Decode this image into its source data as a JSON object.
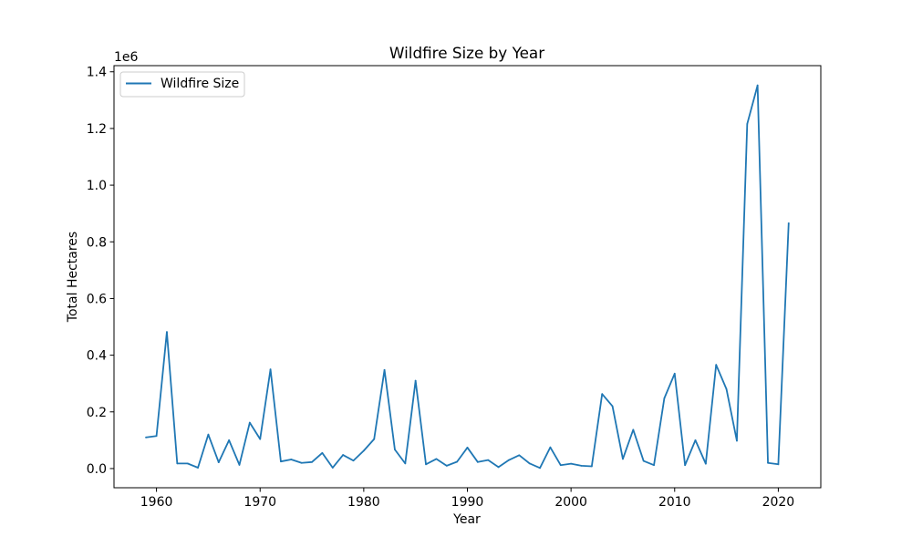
{
  "chart_data": {
    "type": "line",
    "title": "Wildfire Size by Year",
    "xlabel": "Year",
    "ylabel": "Total Hectares",
    "y_offset_label": "1e6",
    "xlim": [
      1955.9,
      2024.1
    ],
    "ylim": [
      -67700,
      1421700
    ],
    "xticks": [
      1960,
      1970,
      1980,
      1990,
      2000,
      2010,
      2020
    ],
    "xtick_labels": [
      "1960",
      "1970",
      "1980",
      "1990",
      "2000",
      "2010",
      "2020"
    ],
    "yticks": [
      0,
      200000,
      400000,
      600000,
      800000,
      1000000,
      1200000,
      1400000
    ],
    "ytick_labels": [
      "0.0",
      "0.2",
      "0.4",
      "0.6",
      "0.8",
      "1.0",
      "1.2",
      "1.4"
    ],
    "grid": false,
    "legend_position": "upper left",
    "series": [
      {
        "name": "Wildfire Size",
        "color": "#1f77b4",
        "x": [
          1959,
          1960,
          1961,
          1962,
          1963,
          1964,
          1965,
          1966,
          1967,
          1968,
          1969,
          1970,
          1971,
          1972,
          1973,
          1974,
          1975,
          1976,
          1977,
          1978,
          1979,
          1980,
          1981,
          1982,
          1983,
          1984,
          1985,
          1986,
          1987,
          1988,
          1989,
          1990,
          1991,
          1992,
          1993,
          1994,
          1995,
          1996,
          1997,
          1998,
          1999,
          2000,
          2001,
          2002,
          2003,
          2004,
          2005,
          2006,
          2007,
          2008,
          2009,
          2010,
          2011,
          2012,
          2013,
          2014,
          2015,
          2016,
          2017,
          2018,
          2019,
          2020,
          2021
        ],
        "values": [
          110000,
          115000,
          482000,
          18000,
          18000,
          3000,
          120000,
          22000,
          100000,
          13000,
          162000,
          104000,
          350000,
          25000,
          32000,
          20000,
          23000,
          55000,
          3000,
          48000,
          28000,
          63000,
          104000,
          348000,
          67000,
          18000,
          310000,
          15000,
          34000,
          10000,
          24000,
          74000,
          23000,
          30000,
          5000,
          30000,
          47000,
          18000,
          2000,
          75000,
          12000,
          17000,
          10000,
          8000,
          263000,
          220000,
          34000,
          137000,
          27000,
          12000,
          248000,
          335000,
          12000,
          100000,
          17000,
          366000,
          280000,
          98000,
          1216000,
          1352000,
          20000,
          15000,
          865000
        ]
      }
    ]
  }
}
